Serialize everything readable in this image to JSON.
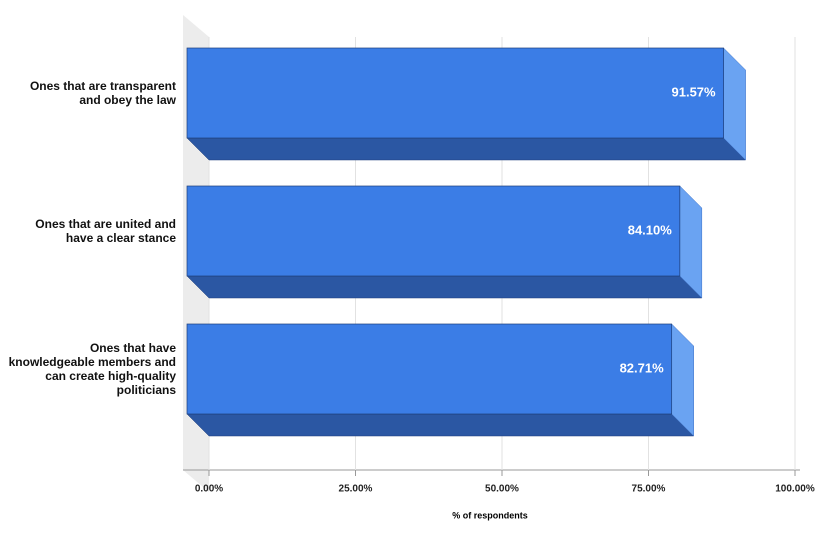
{
  "chart_data": {
    "type": "bar3d",
    "orientation": "horizontal",
    "categories": [
      "Ones that are transparent and obey the law",
      "Ones that are united and have a clear stance",
      "Ones that have knowledgeable members and can create high-quality politicians"
    ],
    "values": [
      91.57,
      84.1,
      82.71
    ],
    "value_labels": [
      "91.57%",
      "84.10%",
      "82.71%"
    ],
    "color": "#3b7de6",
    "xlabel": "% of respondents",
    "xlim": [
      0,
      100
    ],
    "xticks": [
      {
        "value": 0,
        "label": "0.00%"
      },
      {
        "value": 25,
        "label": "25.00%"
      },
      {
        "value": 50,
        "label": "50.00%"
      },
      {
        "value": 75,
        "label": "75.00%"
      },
      {
        "value": 100,
        "label": "100.00%"
      }
    ],
    "grid": true
  }
}
